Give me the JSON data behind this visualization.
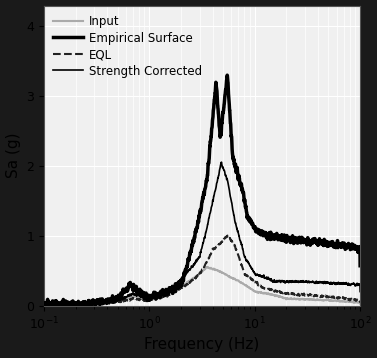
{
  "title": "",
  "xlabel": "Frequency (Hz)",
  "ylabel": "Sa (g)",
  "xlim": [
    0.1,
    100
  ],
  "ylim": [
    0,
    4.3
  ],
  "yticks": [
    0,
    1,
    2,
    3,
    4
  ],
  "legend": [
    "Input",
    "Empirical Surface",
    "EQL",
    "Strength Corrected"
  ],
  "line_styles": [
    {
      "color": "#aaaaaa",
      "lw": 1.5,
      "ls": "-",
      "zorder": 2
    },
    {
      "color": "#000000",
      "lw": 2.5,
      "ls": "-",
      "zorder": 4
    },
    {
      "color": "#222222",
      "lw": 1.5,
      "ls": "--",
      "zorder": 3
    },
    {
      "color": "#000000",
      "lw": 1.2,
      "ls": "-",
      "zorder": 5
    }
  ],
  "background_color": "#f0f0f0",
  "fig_background": "#1a1a1a",
  "ax_background": "#f0f0f0",
  "grid_color": "#ffffff",
  "tick_color": "#000000",
  "label_color": "#000000"
}
